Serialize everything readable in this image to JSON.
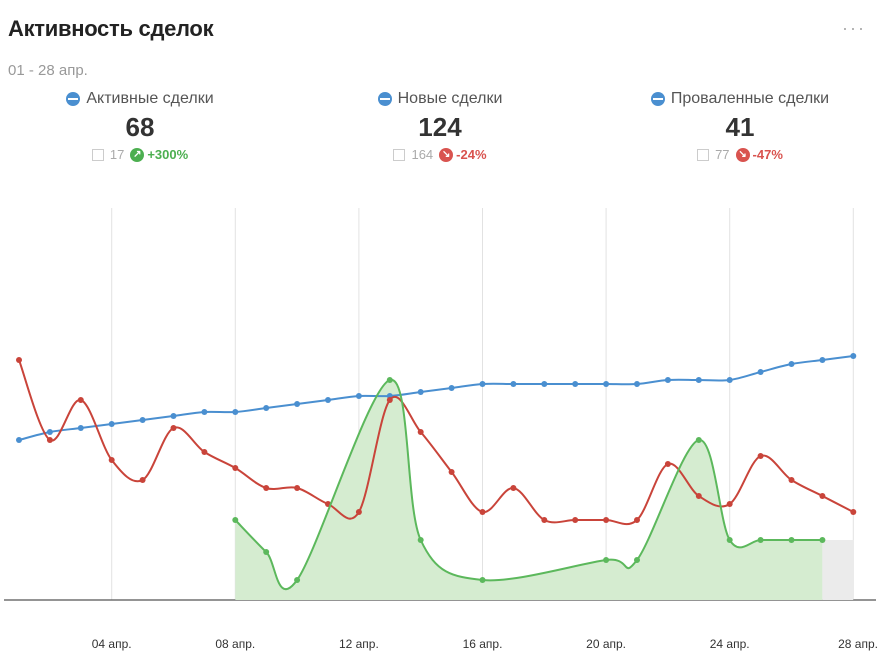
{
  "widget": {
    "title": "Активность сделок",
    "more": "···",
    "period": "01 - 28 апр."
  },
  "kpis": [
    {
      "label": "Активные сделки",
      "value": "68",
      "prev": "17",
      "change": "+300%",
      "trend": "up"
    },
    {
      "label": "Новые сделки",
      "value": "124",
      "prev": "164",
      "change": "-24%",
      "trend": "down"
    },
    {
      "label": "Проваленные сделки",
      "value": "41",
      "prev": "77",
      "change": "-47%",
      "trend": "down"
    }
  ],
  "colors": {
    "blue": "#4a8fd0",
    "red": "#c9443a",
    "green": "#5cb85c",
    "green_fill": "#d5ecd0"
  },
  "chart_data": {
    "type": "line",
    "x": [
      "01 апр.",
      "02 апр.",
      "03 апр.",
      "04 апр.",
      "05 апр.",
      "06 апр.",
      "07 апр.",
      "08 апр.",
      "09 апр.",
      "10 апр.",
      "11 апр.",
      "12 апр.",
      "13 апр.",
      "14 апр.",
      "15 апр.",
      "16 апр.",
      "17 апр.",
      "18 апр.",
      "19 апр.",
      "20 апр.",
      "21 апр.",
      "22 апр.",
      "23 апр.",
      "24 апр.",
      "25 апр.",
      "26 апр.",
      "27 апр.",
      "28 апр."
    ],
    "xticks": [
      "04 апр.",
      "08 апр.",
      "12 апр.",
      "16 апр.",
      "20 апр.",
      "24 апр.",
      "28 апр."
    ],
    "ylim": [
      0,
      100
    ],
    "grid": true,
    "series": [
      {
        "values": [
          40,
          42,
          43,
          44,
          45,
          46,
          47,
          47,
          48,
          49,
          50,
          51,
          51,
          52,
          53,
          54,
          54,
          54,
          54,
          54,
          54,
          55,
          55,
          55,
          57,
          59,
          60,
          61
        ]
      },
      {
        "values": [
          60,
          40,
          50,
          35,
          30,
          43,
          37,
          33,
          28,
          28,
          24,
          22,
          50,
          42,
          32,
          22,
          28,
          20,
          20,
          20,
          20,
          34,
          26,
          24,
          36,
          30,
          26,
          22
        ]
      },
      {
        "values": [
          null,
          null,
          null,
          null,
          null,
          null,
          null,
          20,
          12,
          5,
          null,
          null,
          55,
          15,
          null,
          5,
          null,
          null,
          null,
          10,
          10,
          null,
          40,
          15,
          15,
          15,
          15,
          null
        ]
      }
    ]
  }
}
